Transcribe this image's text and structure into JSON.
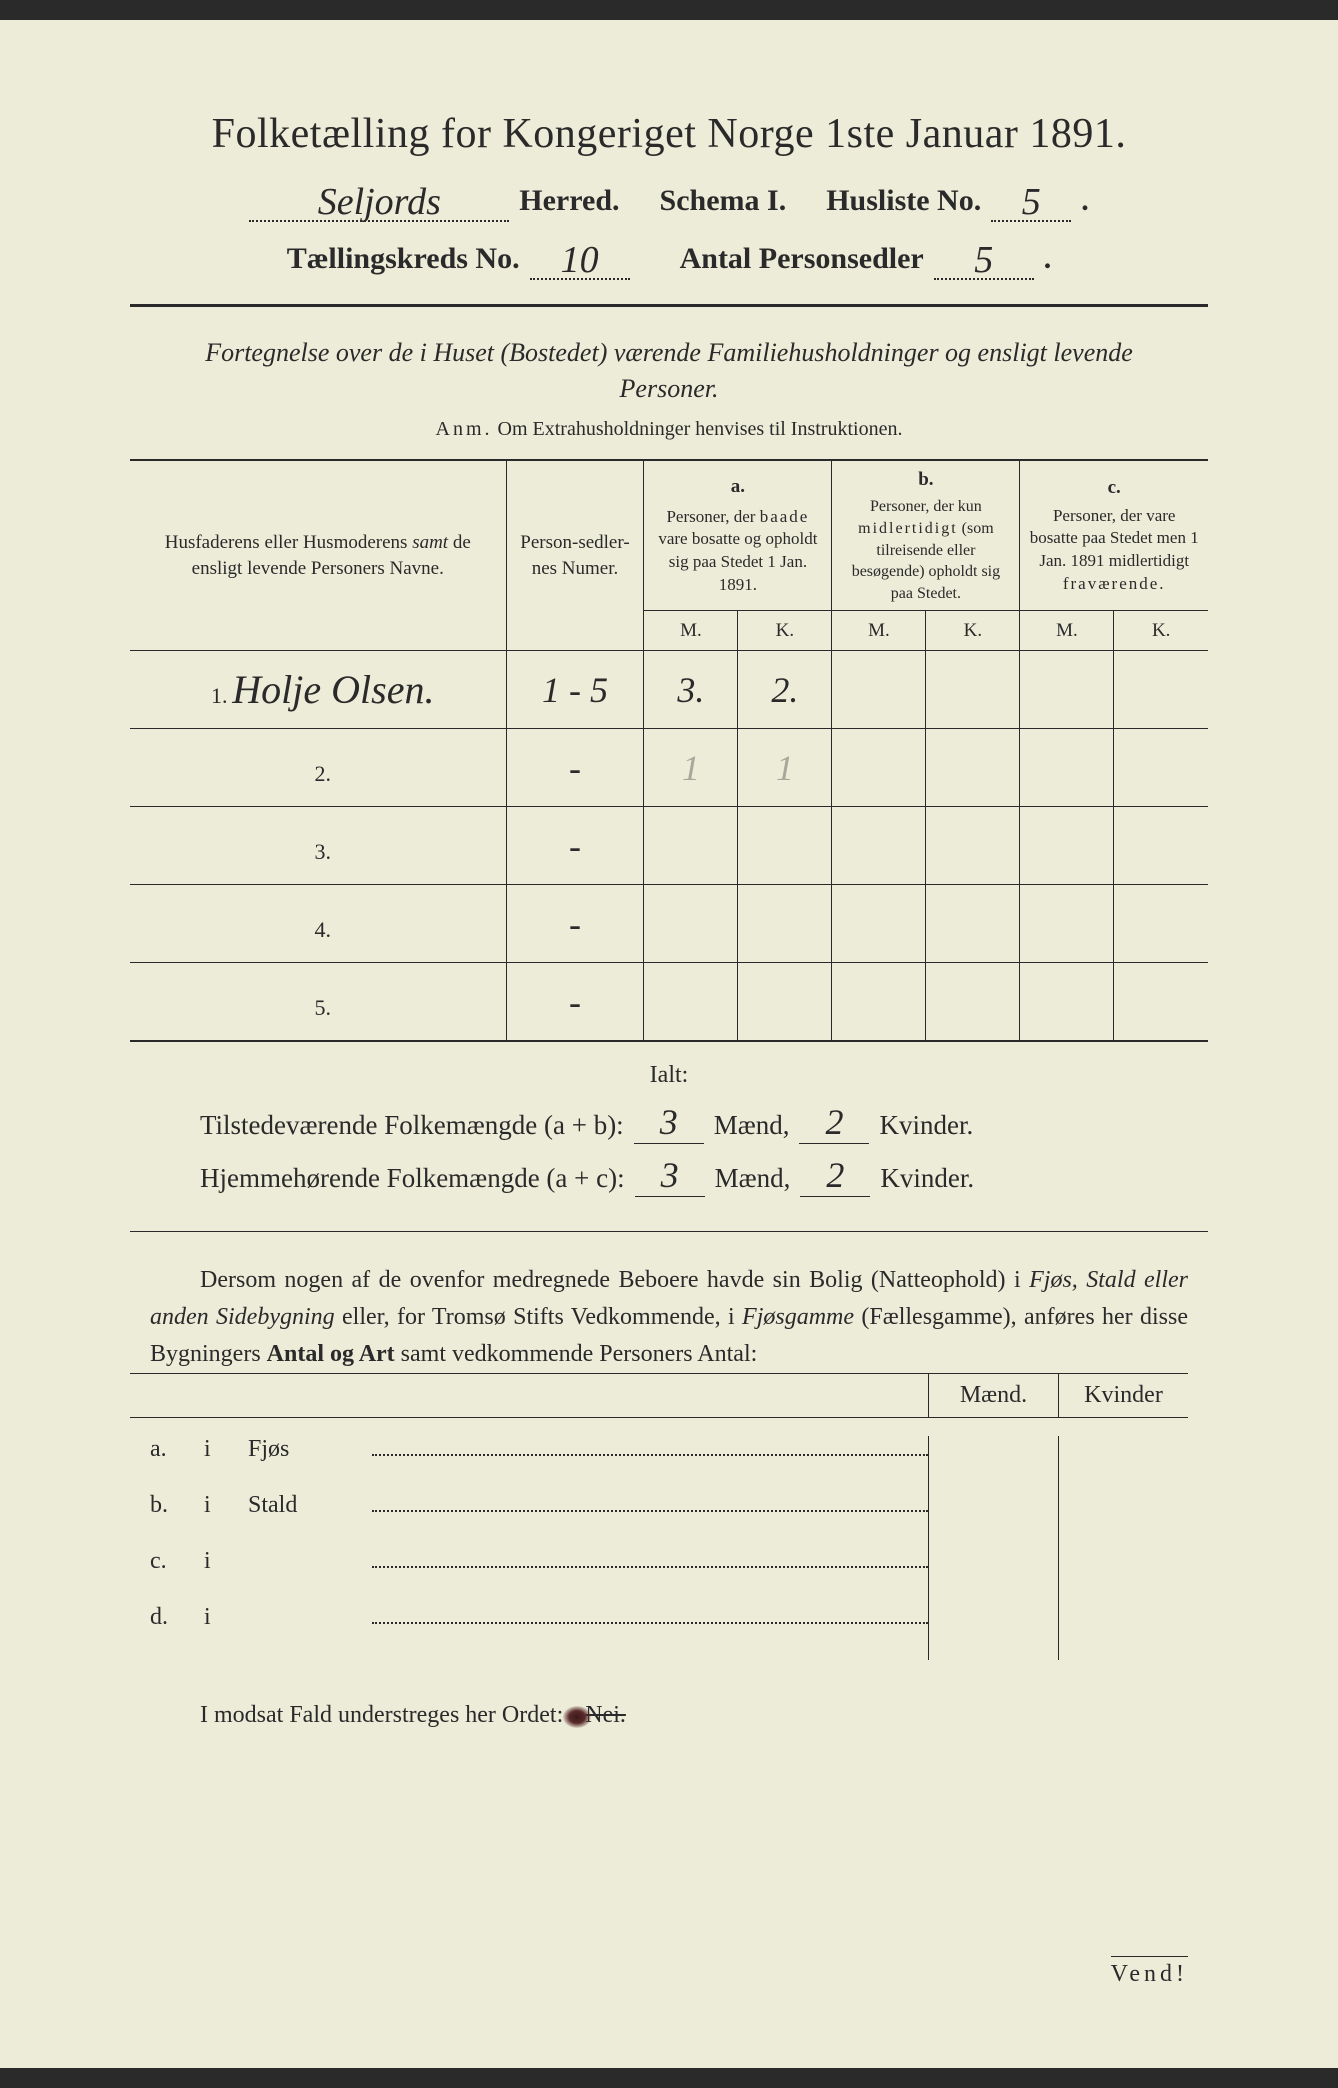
{
  "title": "Folketælling for Kongeriget Norge 1ste Januar 1891.",
  "header": {
    "herred_value": "Seljords",
    "herred_label": "Herred.",
    "schema_label": "Schema I.",
    "husliste_label": "Husliste No.",
    "husliste_value": "5",
    "kreds_label": "Tællingskreds No.",
    "kreds_value": "10",
    "antal_label": "Antal Personsedler",
    "antal_value": "5"
  },
  "subtitle": "Fortegnelse over de i Huset (Bostedet) værende Familiehusholdninger og ensligt levende Personer.",
  "anm_label": "Anm.",
  "anm_text": "Om Extrahusholdninger henvises til Instruktionen.",
  "columns": {
    "name": "Husfaderens eller Husmoderens samt de ensligt levende Personers Navne.",
    "numer": "Person-sedler-nes Numer.",
    "a_label": "a.",
    "a_text": "Personer, der baade vare bosatte og opholdt sig paa Stedet 1 Jan. 1891.",
    "b_label": "b.",
    "b_text": "Personer, der kun midlertidigt (som tilreisende eller besøgende) opholdt sig paa Stedet.",
    "c_label": "c.",
    "c_text": "Personer, der vare bosatte paa Stedet men 1 Jan. 1891 midlertidigt fraværende.",
    "M": "M.",
    "K": "K."
  },
  "rows": [
    {
      "n": "1.",
      "name": "Holje Olsen.",
      "numer": "1 - 5",
      "aM": "3.",
      "aK": "2.",
      "bM": "",
      "bK": "",
      "cM": "",
      "cK": ""
    },
    {
      "n": "2.",
      "name": "",
      "numer": "-",
      "aM": "1",
      "aK": "1",
      "bM": "",
      "bK": "",
      "cM": "",
      "cK": "",
      "faint": true
    },
    {
      "n": "3.",
      "name": "",
      "numer": "-",
      "aM": "",
      "aK": "",
      "bM": "",
      "bK": "",
      "cM": "",
      "cK": ""
    },
    {
      "n": "4.",
      "name": "",
      "numer": "-",
      "aM": "",
      "aK": "",
      "bM": "",
      "bK": "",
      "cM": "",
      "cK": ""
    },
    {
      "n": "5.",
      "name": "",
      "numer": "-",
      "aM": "",
      "aK": "",
      "bM": "",
      "bK": "",
      "cM": "",
      "cK": ""
    }
  ],
  "ialt": "Ialt:",
  "summary": {
    "line1_label": "Tilstedeværende Folkemængde (a + b):",
    "line2_label": "Hjemmehørende Folkemængde (a + c):",
    "maend": "Mænd,",
    "kvinder": "Kvinder.",
    "v1m": "3",
    "v1k": "2",
    "v2m": "3",
    "v2k": "2"
  },
  "para": {
    "t1": "Dersom nogen af de ovenfor medregnede Beboere havde sin Bolig (Natteophold) i ",
    "t2": "Fjøs, Stald eller anden Sidebygning",
    "t3": " eller, for Tromsø Stifts Vedkommende, i ",
    "t4": "Fjøsgamme",
    "t5": " (Fællesgamme), anføres her disse Bygningers ",
    "t6": "Antal og Art",
    "t7": " samt vedkommende Personers Antal:"
  },
  "side": {
    "maend": "Mænd.",
    "kvinder": "Kvinder",
    "rows": [
      {
        "k": "a.",
        "i": "i",
        "label": "Fjøs"
      },
      {
        "k": "b.",
        "i": "i",
        "label": "Stald"
      },
      {
        "k": "c.",
        "i": "i",
        "label": ""
      },
      {
        "k": "d.",
        "i": "i",
        "label": ""
      }
    ]
  },
  "modsat": {
    "t1": "I modsat Fald understreges her Ordet:",
    "nei": "Nei."
  },
  "vend": "Vend!",
  "colors": {
    "paper": "#edecd9",
    "ink": "#2a2a2a"
  }
}
